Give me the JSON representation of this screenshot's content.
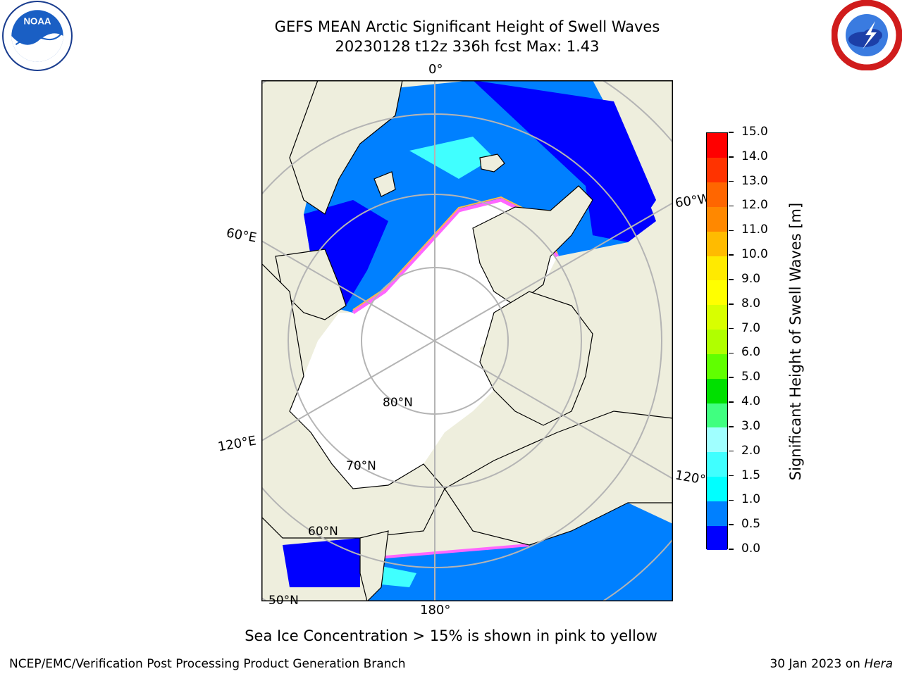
{
  "header": {
    "title_line1": "GEFS MEAN Arctic Significant Height of Swell Waves",
    "title_line2": "20230128 t12z 336h fcst   Max: 1.43"
  },
  "logos": {
    "left": {
      "icon": "noaa-logo",
      "text": "NOAA"
    },
    "right": {
      "icon": "national-weather-service-logo"
    }
  },
  "map": {
    "projection": "north-polar-stereographic",
    "colors": {
      "land": "#eeeedd",
      "ice": "#ffffff",
      "grid": "#b4b4b4",
      "coast": "#000000"
    },
    "lon_labels": [
      "0°",
      "60°E",
      "120°E",
      "180°",
      "120°",
      "60°W"
    ],
    "lat_labels": [
      "80°N",
      "70°N",
      "60°N",
      "50°N"
    ]
  },
  "colorbar": {
    "label": "Significant Height of Swell Waves [m]",
    "ticks": [
      "0.0",
      "0.5",
      "1.0",
      "1.5",
      "2.0",
      "3.0",
      "4.0",
      "5.0",
      "6.0",
      "7.0",
      "8.0",
      "9.0",
      "10.0",
      "11.0",
      "12.0",
      "13.0",
      "14.0",
      "15.0"
    ],
    "colors": [
      "#0000ff",
      "#0080ff",
      "#00ffff",
      "#40ffff",
      "#a0ffff",
      "#40ff80",
      "#00e000",
      "#60ff00",
      "#b0ff00",
      "#d8ff00",
      "#ffff00",
      "#ffea00",
      "#ffbb00",
      "#ff8800",
      "#ff6600",
      "#ff3300",
      "#ff0000"
    ]
  },
  "notes": {
    "ice": "Sea Ice Concentration > 15% is shown in pink to yellow"
  },
  "footer": {
    "left": "NCEP/EMC/Verification Post Processing Product Generation Branch",
    "right_date": "30 Jan 2023 on ",
    "right_machine": "Hera"
  }
}
